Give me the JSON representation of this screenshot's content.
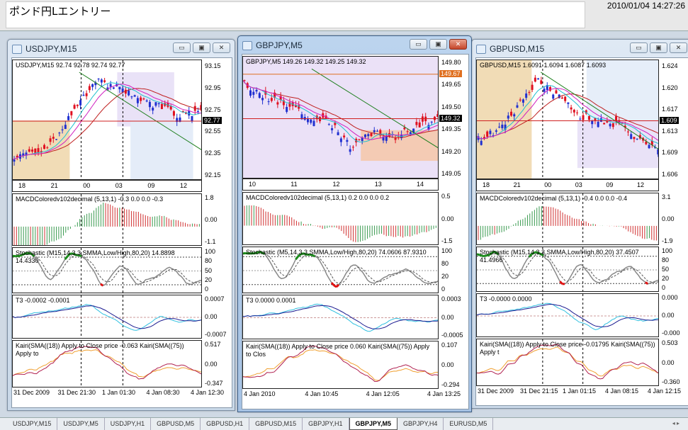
{
  "app": {
    "note_text": "ポンド円Lエントリー",
    "datetime": "2010/01/04 14:27:26"
  },
  "windows": [
    {
      "title": "USDJPY,M15",
      "active": false,
      "header": "USDJPY,M15  92.74 92.78 92.74 92.77",
      "price_axis": [
        "93.15",
        "92.95",
        "92.75",
        "92.55",
        "92.35",
        "92.15"
      ],
      "current_price": "92.77",
      "tag_color": "#000000",
      "hours": [
        "18",
        "21",
        "00",
        "03",
        "09",
        "12"
      ],
      "macd": {
        "label": "MACDColoredv102decimal (5,13,1) -0.3 0.0 0.0 -0.3",
        "axis": [
          "1.8",
          "0.00",
          "-1.1"
        ]
      },
      "stoch": {
        "label": "Stochastic (M15,14,3,3,SMMA,Low/High,80,20) 14.8898 14.4330",
        "axis": [
          "100",
          "80",
          "50",
          "20",
          "0"
        ]
      },
      "t3": {
        "label": "T3 -0.0002 -0.0001",
        "axis": [
          "0.0007",
          "0.00",
          "-0.0007"
        ]
      },
      "kairi": {
        "label": "Kairi(SMA((18)) Apply to Close price -0.063  Kairi(SMA((75)) Apply to",
        "axis": [
          "0.517",
          "0.00",
          "-0.347"
        ]
      },
      "dates": [
        "31 Dec 2009",
        "31 Dec 21:30",
        "1 Jan 01:30",
        "4 Jan 08:30",
        "4 Jan 12:30"
      ]
    },
    {
      "title": "GBPJPY,M5",
      "active": true,
      "header": "GBPJPY,M5  149.26 149.32 149.25 149.32",
      "price_axis": [
        "149.80",
        "149.65",
        "149.50",
        "149.35",
        "149.20",
        "149.05"
      ],
      "current_price": "149.32",
      "tag_color": "#000000",
      "level_price": "149.67",
      "level_color": "#e07020",
      "hours": [
        "10",
        "11",
        "12",
        "13",
        "14"
      ],
      "macd": {
        "label": "MACDColoredv102decimal (5,13,1) 0.2 0.0 0.0 0.2",
        "axis": [
          "0.5",
          "0.00",
          "-1.5"
        ]
      },
      "stoch": {
        "label": "Stochastic (M5,14,3,3,SMMA,Low/High,80,20) 74.0606 87.9310",
        "axis": [
          "100",
          "80",
          "20",
          "0"
        ]
      },
      "t3": {
        "label": "T3 0.0000 0.0001",
        "axis": [
          "0.0003",
          "0.00",
          "-0.0005"
        ]
      },
      "kairi": {
        "label": "Kairi(SMA((18)) Apply to Close price 0.060  Kairi(SMA((75)) Apply to Clos",
        "axis": [
          "0.107",
          "0.00",
          "-0.294"
        ]
      },
      "dates": [
        "4 Jan 2010",
        "4 Jan 10:45",
        "4 Jan 12:05",
        "4 Jan 13:25"
      ]
    },
    {
      "title": "GBPUSD,M15",
      "active": false,
      "header": "GBPUSD,M15  1.6091 1.6094 1.6087 1.6093",
      "price_axis": [
        "1.624",
        "1.620",
        "1.617",
        "1.613",
        "1.609",
        "1.606"
      ],
      "current_price": "1.609",
      "tag_color": "#000000",
      "hours": [
        "18",
        "21",
        "00",
        "03",
        "09",
        "12"
      ],
      "macd": {
        "label": "MACDColoredv102decimal (5,13,1) -0.4 0.0 0.0 -0.4",
        "axis": [
          "3.1",
          "0.00",
          "-1.9"
        ]
      },
      "stoch": {
        "label": "Stochastic (M15,14,3,3,SMMA,Low/High,80,20) 37.4507 41.4966",
        "axis": [
          "100",
          "80",
          "50",
          "20",
          "0"
        ]
      },
      "t3": {
        "label": "T3 -0.0000 0.0000",
        "axis": [
          "0.000",
          "0.00",
          "-0.000"
        ]
      },
      "kairi": {
        "label": "Kairi(SMA((18)) Apply to Close price -0.01795  Kairi(SMA((75)) Apply t",
        "axis": [
          "0.503",
          "0.00",
          "-0.360"
        ]
      },
      "dates": [
        "31 Dec 2009",
        "31 Dec 21:15",
        "1 Jan 01:15",
        "4 Jan 08:15",
        "4 Jan 12:15"
      ]
    }
  ],
  "window_buttons": {
    "minimize": "▭",
    "maximize": "▣",
    "close": "✕"
  },
  "tabs": [
    {
      "label": "USDJPY,M15"
    },
    {
      "label": "USDJPY,M5"
    },
    {
      "label": "USDJPY,H1"
    },
    {
      "label": "GBPUSD,M5"
    },
    {
      "label": "GBPUSD,H1"
    },
    {
      "label": "GBPUSD,M15"
    },
    {
      "label": "GBPJPY,H1"
    },
    {
      "label": "GBPJPY,M5",
      "active": true
    },
    {
      "label": "GBPJPY,H4"
    },
    {
      "label": "EURUSD,M5"
    }
  ],
  "tab_arrows": "◂ ▸"
}
